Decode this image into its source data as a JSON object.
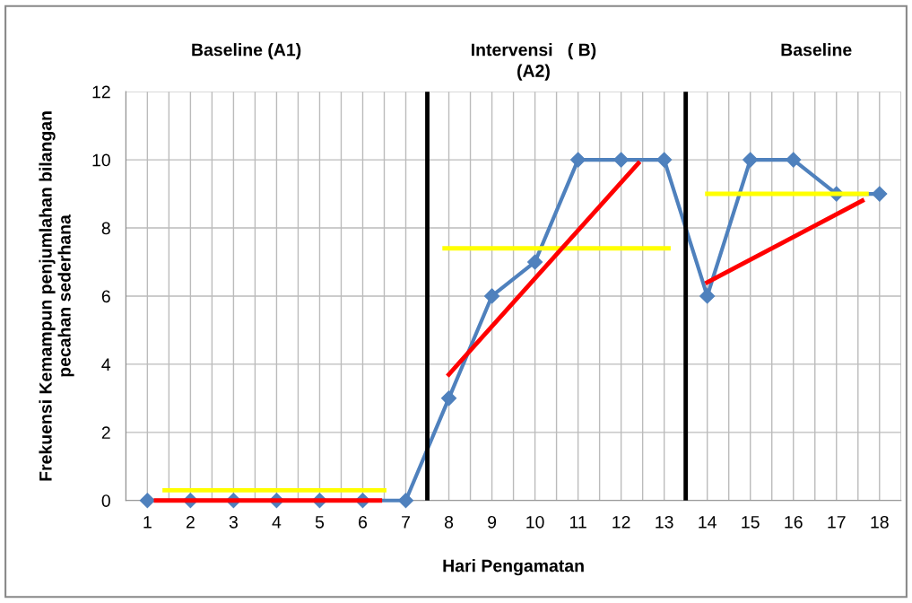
{
  "chart_data": {
    "type": "line",
    "xlabel": "Hari Pengamatan",
    "ylabel": "Frekuensi Kemampun penjumlahan bilangan\npecahan sederhana",
    "x": [
      1,
      2,
      3,
      4,
      5,
      6,
      7,
      8,
      9,
      10,
      11,
      12,
      13,
      14,
      15,
      16,
      17,
      18
    ],
    "xlim": [
      0.5,
      18.5
    ],
    "xticks": [
      1,
      2,
      3,
      4,
      5,
      6,
      7,
      8,
      9,
      10,
      11,
      12,
      13,
      14,
      15,
      16,
      17,
      18
    ],
    "ylim": [
      0,
      12
    ],
    "yticks": [
      0,
      2,
      4,
      6,
      8,
      10,
      12
    ],
    "grid": true,
    "series": [
      {
        "color": "#4f81bd",
        "marker": "diamond",
        "values": [
          0,
          0,
          0,
          0,
          0,
          0,
          0,
          3,
          6,
          7,
          10,
          10,
          10,
          6,
          10,
          10,
          9,
          9
        ]
      },
      {
        "color": "#ffff00",
        "marker": "none",
        "x": [
          1.4,
          6.5
        ],
        "values": [
          0.3,
          0.3
        ]
      },
      {
        "color": "#ff0000",
        "marker": "none",
        "x": [
          1.2,
          6.4
        ],
        "values": [
          0,
          0
        ]
      },
      {
        "color": "#ffff00",
        "marker": "none",
        "x": [
          7.9,
          13.1
        ],
        "values": [
          7.4,
          7.4
        ]
      },
      {
        "color": "#ff0000",
        "marker": "none",
        "x": [
          8.0,
          12.4
        ],
        "values": [
          3.7,
          9.9
        ]
      },
      {
        "color": "#ffff00",
        "marker": "none",
        "x": [
          14.0,
          17.7
        ],
        "values": [
          9.0,
          9.0
        ]
      },
      {
        "color": "#ff0000",
        "marker": "none",
        "x": [
          14.0,
          17.6
        ],
        "values": [
          6.4,
          8.8
        ]
      }
    ],
    "ref_lines": [
      {
        "axis": "x",
        "value": 7.5,
        "color": "#000000"
      },
      {
        "axis": "x",
        "value": 13.5,
        "color": "#000000"
      }
    ],
    "annotations": [
      "Baseline (A1)",
      "Intervensi   ( B)",
      "(A2)",
      "Baseline"
    ]
  }
}
